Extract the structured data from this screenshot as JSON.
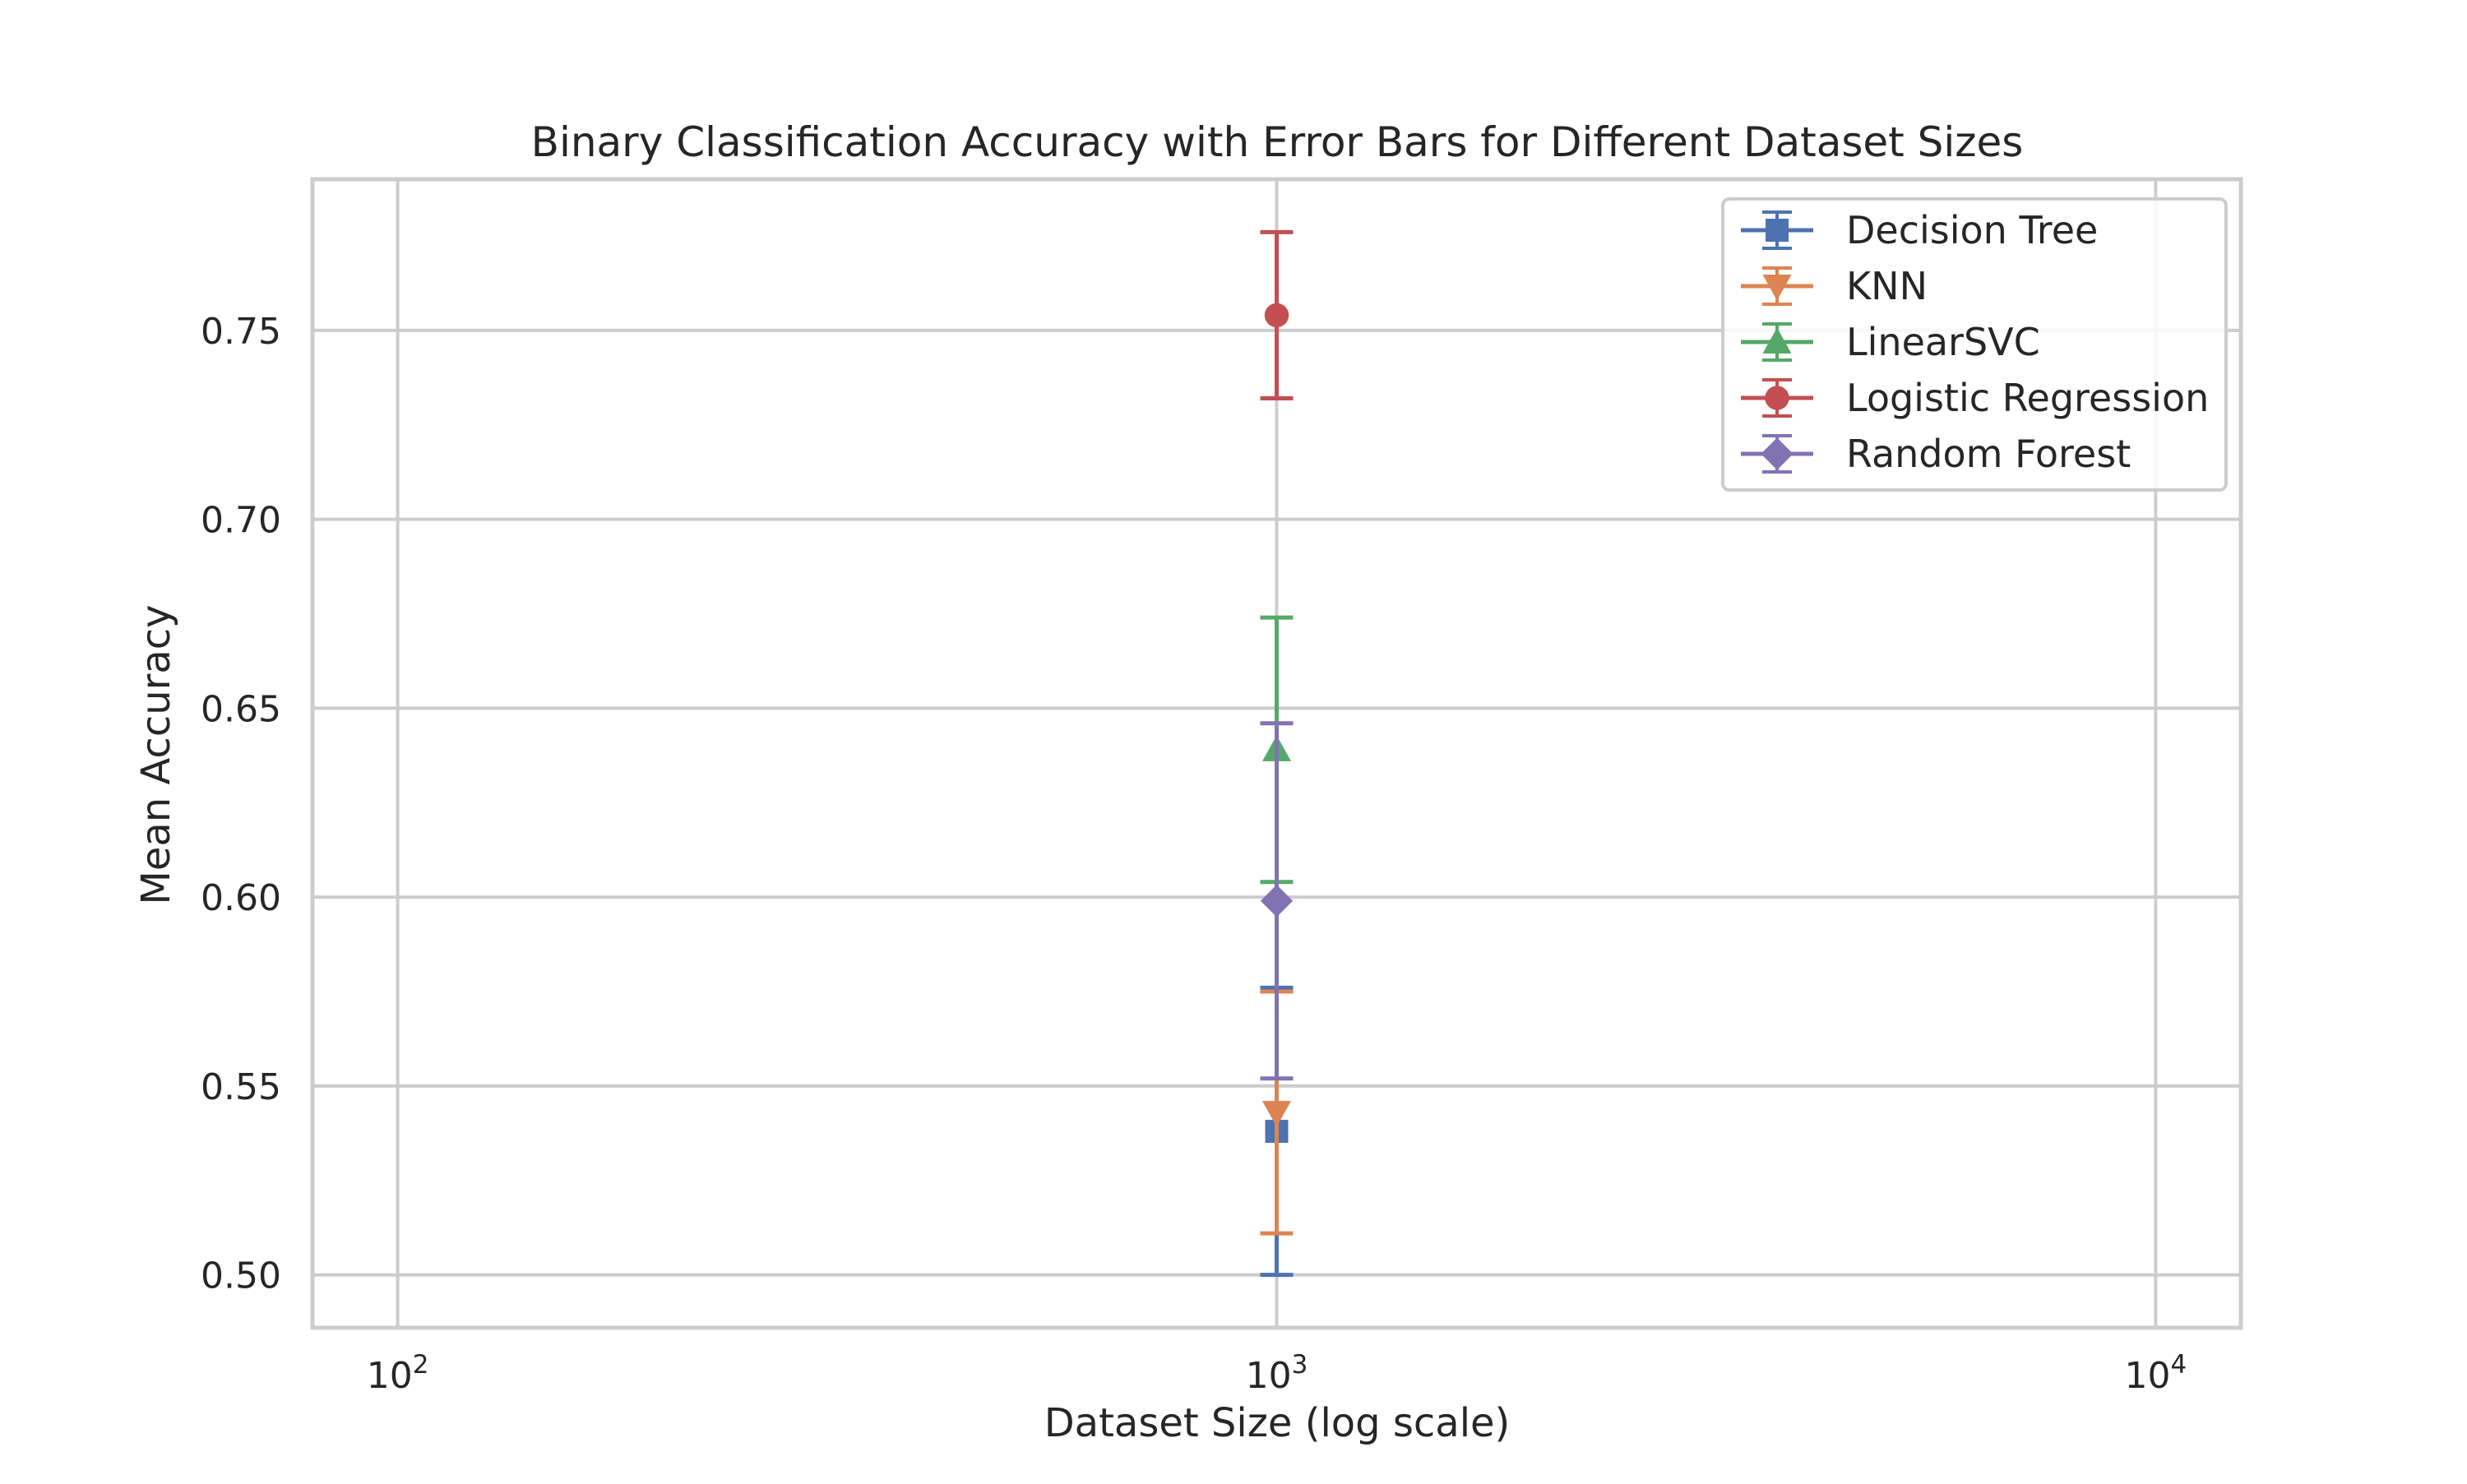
{
  "chart_data": {
    "type": "scatter",
    "title": "Binary Classification Accuracy with Error Bars for Different Dataset Sizes",
    "xlabel": "Dataset Size (log scale)",
    "ylabel": "Mean Accuracy",
    "x_scale": "log",
    "xlim": [
      80,
      12500
    ],
    "ylim": [
      0.486,
      0.79
    ],
    "x_ticks": [
      {
        "value": 100,
        "base": "10",
        "exp": "2"
      },
      {
        "value": 1000,
        "base": "10",
        "exp": "3"
      },
      {
        "value": 10000,
        "base": "10",
        "exp": "4"
      }
    ],
    "y_ticks": [
      {
        "value": 0.5,
        "label": "0.50"
      },
      {
        "value": 0.55,
        "label": "0.55"
      },
      {
        "value": 0.6,
        "label": "0.60"
      },
      {
        "value": 0.65,
        "label": "0.65"
      },
      {
        "value": 0.7,
        "label": "0.70"
      },
      {
        "value": 0.75,
        "label": "0.75"
      }
    ],
    "grid": true,
    "legend_position": "top-right",
    "series": [
      {
        "name": "Decision Tree",
        "color": "#4c72b0",
        "marker": "square",
        "x": [
          1000
        ],
        "y": [
          0.538
        ],
        "err": [
          0.038
        ]
      },
      {
        "name": "KNN",
        "color": "#dd8452",
        "marker": "triangle-down",
        "x": [
          1000
        ],
        "y": [
          0.543
        ],
        "err": [
          0.032
        ]
      },
      {
        "name": "LinearSVC",
        "color": "#55a868",
        "marker": "triangle-up",
        "x": [
          1000
        ],
        "y": [
          0.639
        ],
        "err": [
          0.035
        ]
      },
      {
        "name": "Logistic Regression",
        "color": "#c44e52",
        "marker": "circle",
        "x": [
          1000
        ],
        "y": [
          0.754
        ],
        "err": [
          0.022
        ]
      },
      {
        "name": "Random Forest",
        "color": "#8172b3",
        "marker": "diamond",
        "x": [
          1000
        ],
        "y": [
          0.599
        ],
        "err": [
          0.047
        ]
      }
    ]
  }
}
